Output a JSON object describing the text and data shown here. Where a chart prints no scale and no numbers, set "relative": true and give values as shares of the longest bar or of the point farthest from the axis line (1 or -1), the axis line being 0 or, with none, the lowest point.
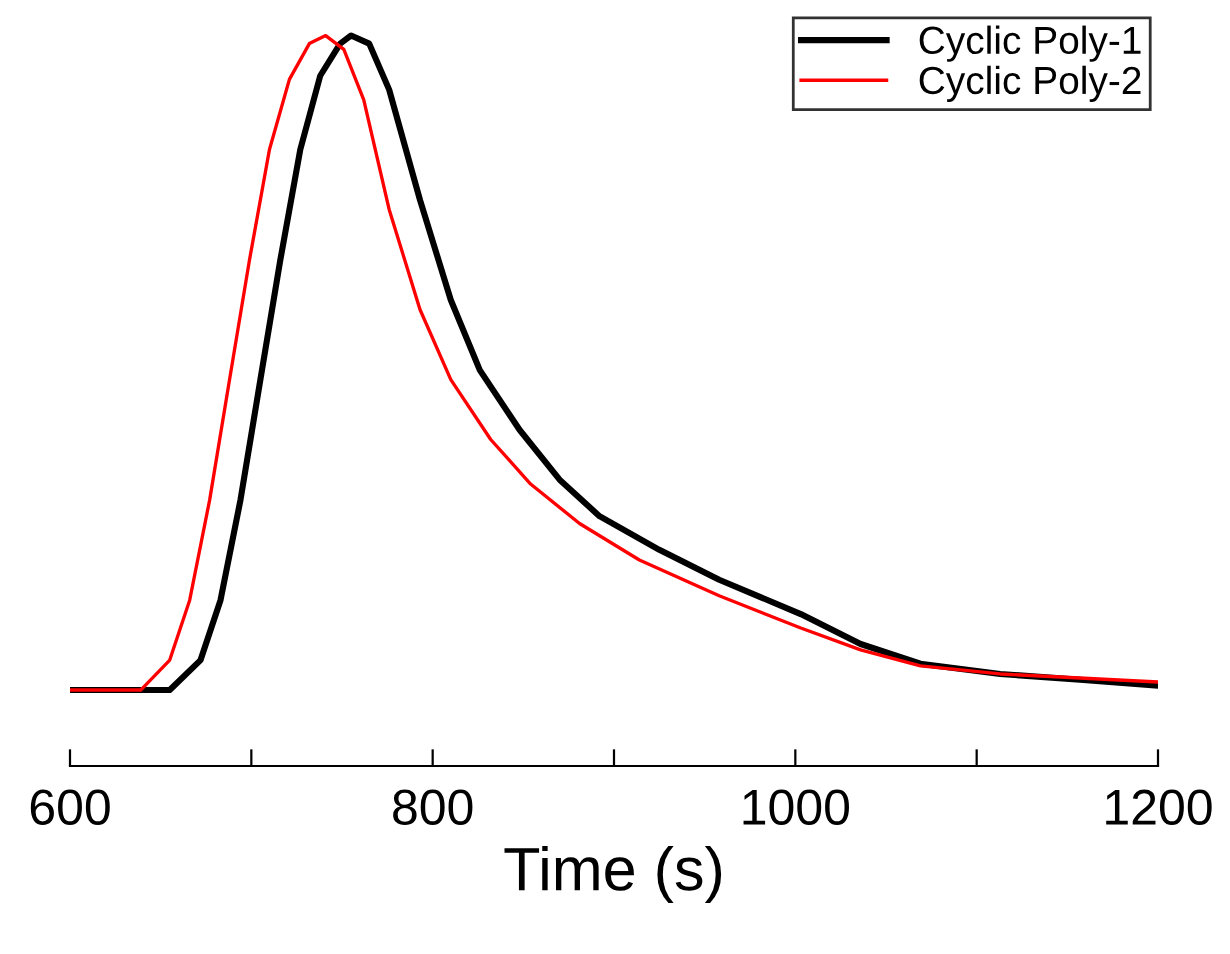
{
  "chart_data": {
    "type": "line",
    "relative": true,
    "xlabel": "Time (s)",
    "xlim": [
      600,
      1200
    ],
    "xticks": [
      600,
      {
        "value": 700,
        "label": null
      },
      800,
      {
        "value": 900,
        "label": null
      },
      1000,
      {
        "value": 1100,
        "label": null
      },
      1200
    ],
    "tick_labels": "x",
    "grid": false,
    "legend": "top right",
    "marker": "none",
    "line_style": "solid",
    "series": [
      {
        "name": "Cyclic Poly-1",
        "color": "#000000",
        "x": [
          600,
          655,
          672,
          683,
          694,
          705,
          716,
          727,
          738,
          749,
          755,
          765,
          776,
          793,
          810,
          826,
          848,
          870,
          892,
          925,
          958,
          1003,
          1036,
          1069,
          1113,
          1157,
          1200
        ],
        "values": [
          0.104,
          0.104,
          0.145,
          0.227,
          0.364,
          0.529,
          0.693,
          0.844,
          0.945,
          0.989,
          1,
          0.989,
          0.926,
          0.775,
          0.638,
          0.542,
          0.46,
          0.392,
          0.342,
          0.296,
          0.255,
          0.208,
          0.167,
          0.14,
          0.126,
          0.118,
          0.11
        ]
      },
      {
        "name": "Cyclic Poly-2",
        "color": "#ff0000",
        "x": [
          600,
          639,
          655,
          666,
          677,
          688,
          699,
          710,
          721,
          732,
          741,
          751,
          762,
          776,
          793,
          810,
          832,
          854,
          881,
          914,
          958,
          1003,
          1036,
          1069,
          1113,
          1200
        ],
        "values": [
          0.104,
          0.104,
          0.145,
          0.227,
          0.364,
          0.529,
          0.693,
          0.844,
          0.94,
          0.989,
          1,
          0.981,
          0.912,
          0.762,
          0.625,
          0.529,
          0.447,
          0.386,
          0.332,
          0.282,
          0.233,
          0.189,
          0.159,
          0.137,
          0.126,
          0.115
        ]
      }
    ]
  }
}
